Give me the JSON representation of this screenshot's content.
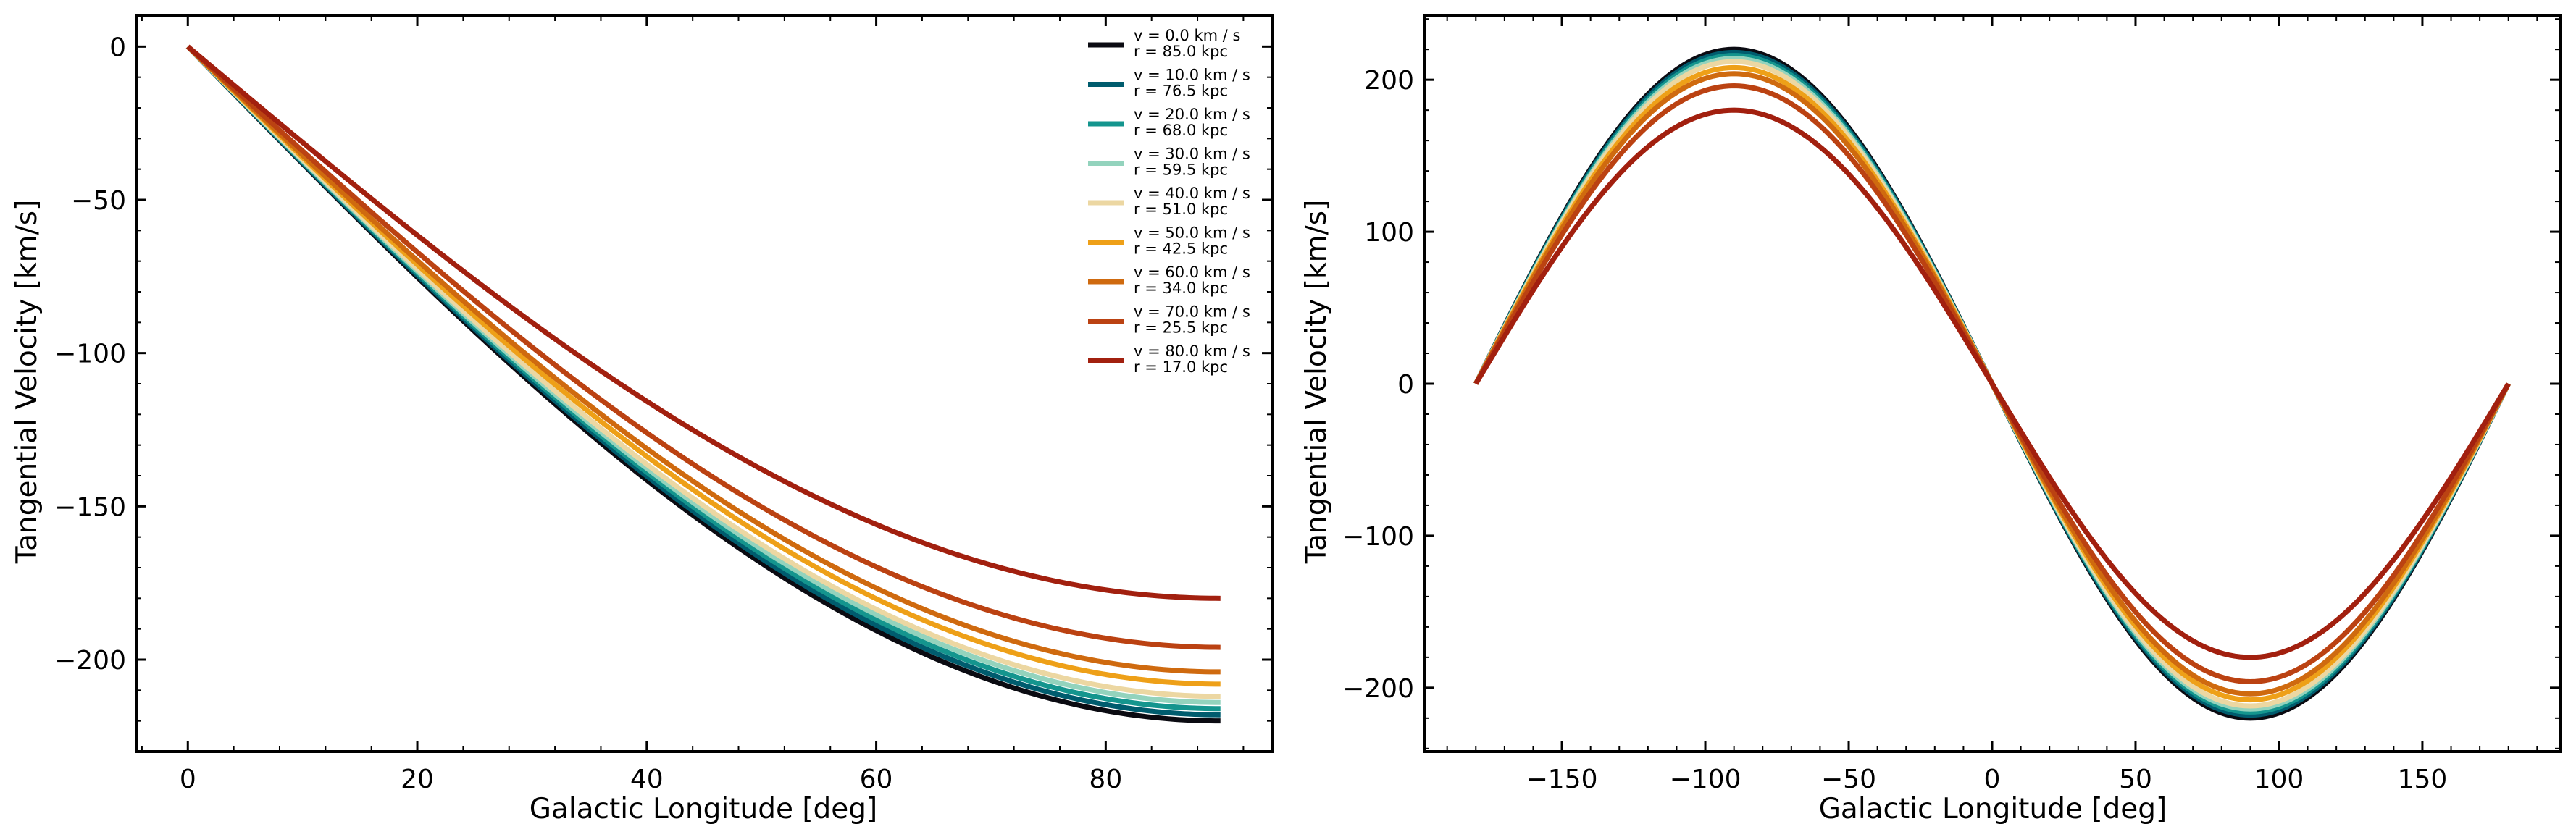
{
  "chart_data": [
    {
      "type": "line",
      "xlabel": "Galactic Longitude [deg]",
      "ylabel": "Tangential Velocity [km/s]",
      "xlim": [
        -4.5,
        94.5
      ],
      "ylim": [
        -230,
        10
      ],
      "x_ticks": [
        0,
        20,
        40,
        60,
        80
      ],
      "y_ticks": [
        0,
        -50,
        -100,
        -150,
        -200
      ],
      "x_tick_labels": [
        "0",
        "20",
        "40",
        "60",
        "80"
      ],
      "y_tick_labels": [
        "0",
        "−50",
        "−100",
        "−150",
        "−200"
      ],
      "x_range": [
        0,
        90
      ],
      "amplitudes": [
        220,
        218,
        216,
        214,
        212,
        208,
        204,
        196,
        180
      ],
      "curve": "v = -amplitude * sin(x)",
      "legend": "top-right"
    },
    {
      "type": "line",
      "xlabel": "Galactic Longitude [deg]",
      "ylabel": "Tangential Velocity [km/s]",
      "xlim": [
        -198,
        198
      ],
      "ylim": [
        -242,
        242
      ],
      "x_ticks": [
        -150,
        -100,
        -50,
        0,
        50,
        100,
        150
      ],
      "y_ticks": [
        200,
        100,
        0,
        -100,
        -200
      ],
      "x_tick_labels": [
        "−150",
        "−100",
        "−50",
        "0",
        "50",
        "100",
        "150"
      ],
      "y_tick_labels": [
        "200",
        "100",
        "0",
        "−100",
        "−200"
      ],
      "x_range": [
        -180,
        180
      ],
      "amplitudes": [
        220,
        218,
        216,
        214,
        212,
        208,
        204,
        196,
        180
      ],
      "curve": "v = -amplitude * sin(x)"
    }
  ],
  "series": [
    {
      "line1": "v = 0.0 km / s",
      "line2": "r = 85.0 kpc",
      "color": "#0b0b12"
    },
    {
      "line1": "v = 10.0 km / s",
      "line2": "r = 76.5 kpc",
      "color": "#005c6e"
    },
    {
      "line1": "v = 20.0 km / s",
      "line2": "r = 68.0 kpc",
      "color": "#14958e"
    },
    {
      "line1": "v = 30.0 km / s",
      "line2": "r = 59.5 kpc",
      "color": "#93d3bd"
    },
    {
      "line1": "v = 40.0 km / s",
      "line2": "r = 51.0 kpc",
      "color": "#ecd7a2"
    },
    {
      "line1": "v = 50.0 km / s",
      "line2": "r = 42.5 kpc",
      "color": "#eea018"
    },
    {
      "line1": "v = 60.0 km / s",
      "line2": "r = 34.0 kpc",
      "color": "#cf6a0f"
    },
    {
      "line1": "v = 70.0 km / s",
      "line2": "r = 25.5 kpc",
      "color": "#bb4212"
    },
    {
      "line1": "v = 80.0 km / s",
      "line2": "r = 17.0 kpc",
      "color": "#a2200f"
    }
  ]
}
